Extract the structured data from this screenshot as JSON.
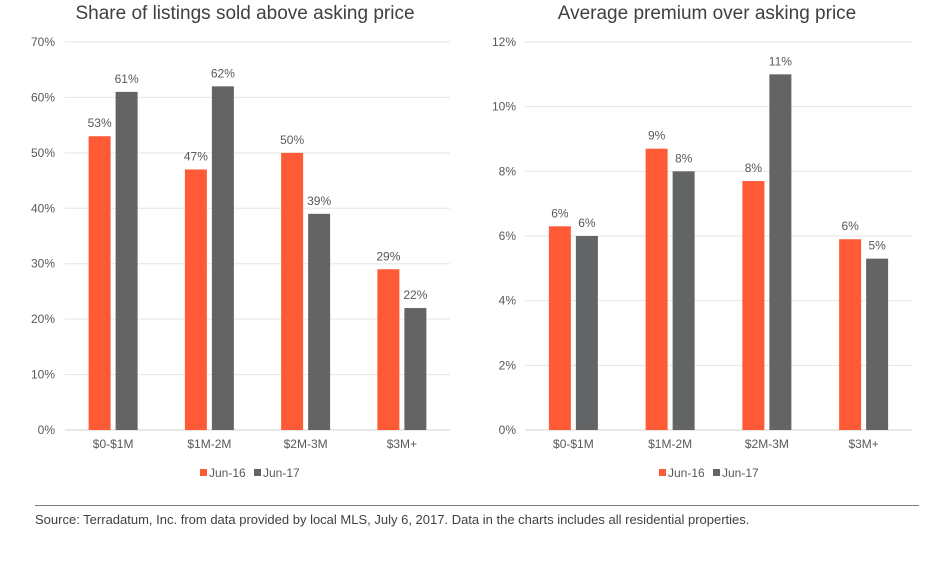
{
  "colors": {
    "jun16": "#ff5a36",
    "jun17": "#636466"
  },
  "chart_data": [
    {
      "type": "bar",
      "title": "Share of listings sold above asking price",
      "categories": [
        "$0-$1M",
        "$1M-2M",
        "$2M-3M",
        "$3M+"
      ],
      "series": [
        {
          "name": "Jun-16",
          "values": [
            53,
            47,
            50,
            29
          ],
          "labels": [
            "53%",
            "47%",
            "50%",
            "29%"
          ]
        },
        {
          "name": "Jun-17",
          "values": [
            61,
            62,
            39,
            22
          ],
          "labels": [
            "61%",
            "62%",
            "39%",
            "22%"
          ]
        }
      ],
      "yticks": [
        "0%",
        "10%",
        "20%",
        "30%",
        "40%",
        "50%",
        "60%",
        "70%"
      ],
      "ylim": [
        0,
        70
      ],
      "ystep": 10,
      "grid": true,
      "legend": "bottom"
    },
    {
      "type": "bar",
      "title": "Average premium over asking price",
      "categories": [
        "$0-$1M",
        "$1M-2M",
        "$2M-3M",
        "$3M+"
      ],
      "series": [
        {
          "name": "Jun-16",
          "values": [
            6.3,
            8.7,
            7.7,
            5.9
          ],
          "labels": [
            "6%",
            "9%",
            "8%",
            "6%"
          ]
        },
        {
          "name": "Jun-17",
          "values": [
            6.0,
            8.0,
            11.0,
            5.3
          ],
          "labels": [
            "6%",
            "8%",
            "11%",
            "5%"
          ]
        }
      ],
      "yticks": [
        "0%",
        "2%",
        "4%",
        "6%",
        "8%",
        "10%",
        "12%"
      ],
      "ylim": [
        0,
        12
      ],
      "ystep": 2,
      "grid": true,
      "legend": "bottom"
    }
  ],
  "source": "Source: Terradatum, Inc. from data provided by local MLS, July 6, 2017. Data in the charts includes all residential properties."
}
